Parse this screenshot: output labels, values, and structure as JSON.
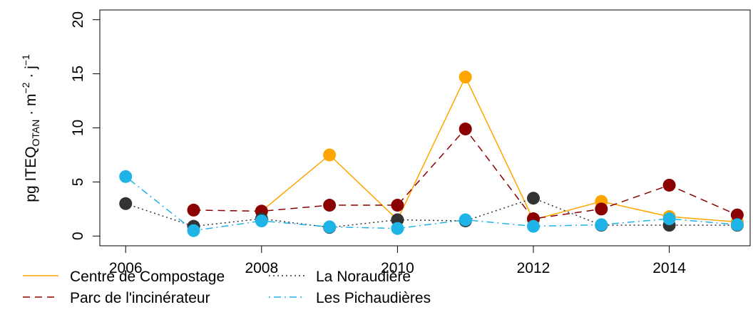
{
  "chart_data": {
    "type": "line",
    "ylabel": [
      "pg ITEQ",
      "OTAN",
      " · m",
      "−2",
      " · j",
      "−1"
    ],
    "x": [
      2006,
      2007,
      2008,
      2009,
      2010,
      2011,
      2012,
      2013,
      2014,
      2015
    ],
    "xlim": [
      2005.62,
      2015.19
    ],
    "xticks": [
      2006,
      2008,
      2010,
      2012,
      2014
    ],
    "ylim": [
      -0.9,
      20.9
    ],
    "yticks": [
      0,
      5,
      10,
      15,
      20
    ],
    "series": [
      {
        "name": "Centre de Compostage",
        "color": "#ffa500",
        "dash": "solid",
        "values": [
          null,
          null,
          2.3,
          7.5,
          1.5,
          14.7,
          1.5,
          3.2,
          1.8,
          1.3
        ]
      },
      {
        "name": "Parc de l'incinérateur",
        "color": "#8b0000",
        "dash": "dashed",
        "values": [
          null,
          2.4,
          2.3,
          2.85,
          2.85,
          9.9,
          1.6,
          2.5,
          4.7,
          1.95
        ]
      },
      {
        "name": "La Noraudière",
        "color": "#333333",
        "dash": "dotted",
        "values": [
          3.0,
          0.9,
          1.6,
          0.8,
          1.5,
          1.4,
          3.5,
          1.0,
          1.0,
          1.0
        ]
      },
      {
        "name": "Les Pichaudières",
        "color": "#1eb4e8",
        "dash": "dotdash",
        "values": [
          5.5,
          0.5,
          1.4,
          0.85,
          0.7,
          1.5,
          0.9,
          1.05,
          1.6,
          1.05
        ]
      }
    ]
  }
}
